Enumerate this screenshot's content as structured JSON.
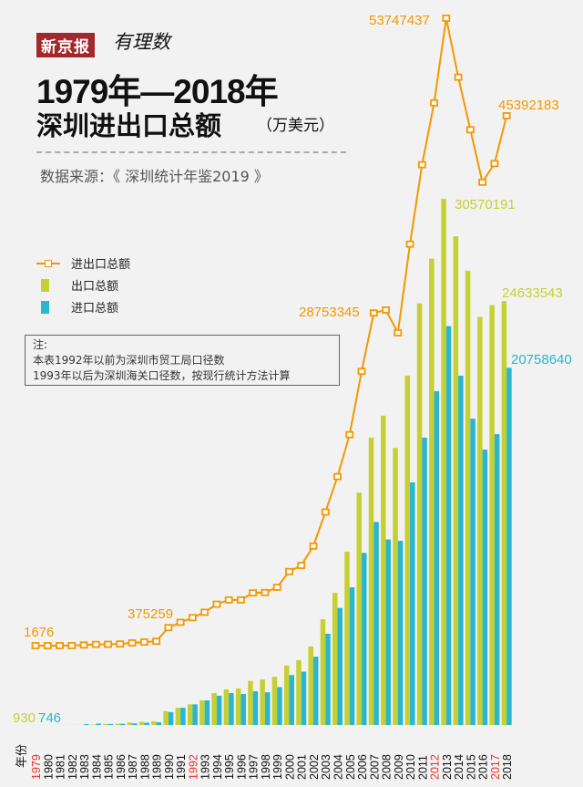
{
  "header": {
    "logo_text": "新京报",
    "logo_script": "有理数",
    "title_line1": "1979年—2018年",
    "title_line2": "深圳进出口总额",
    "unit": "（万美元）",
    "source": "数据来源：《 深圳统计年鉴2019 》"
  },
  "note": {
    "label": "注:",
    "line1": "本表1992年以前为深圳市贸工局口径数",
    "line2": "1993年以后为深圳海关口径数，按现行统计方法计算"
  },
  "colors": {
    "total": "#f39800",
    "export": "#c5d032",
    "import": "#2bb5cf",
    "highlight_year": "#e8302a",
    "year": "#111111"
  },
  "chart_data": {
    "type": "bar+line",
    "title": "1979年—2018年深圳进出口总额（万美元）",
    "xlabel": "年份",
    "unit": "万美元",
    "legend": [
      "进出口总额",
      "出口总额",
      "进口总额"
    ],
    "legend_position": "top-left",
    "highlight_years": [
      "1979",
      "1992",
      "2012",
      "2017"
    ],
    "categories": [
      "1979",
      "1980",
      "1981",
      "1982",
      "1983",
      "1984",
      "1985",
      "1986",
      "1987",
      "1988",
      "1989",
      "1990",
      "1991",
      "1992",
      "1993",
      "1994",
      "1995",
      "1996",
      "1997",
      "1998",
      "1999",
      "2000",
      "2001",
      "2002",
      "2003",
      "2004",
      "2005",
      "2006",
      "2007",
      "2008",
      "2009",
      "2010",
      "2011",
      "2012",
      "2013",
      "2014",
      "2015",
      "2016",
      "2017",
      "2018"
    ],
    "series": [
      {
        "name": "出口总额",
        "values": [
          930,
          1124,
          1676,
          1954,
          7135,
          26504,
          56300,
          72500,
          141400,
          184500,
          217700,
          800000,
          1000000,
          1200000,
          1430000,
          1850000,
          2070000,
          2120000,
          2560000,
          2650000,
          2800000,
          3450000,
          3770000,
          4560000,
          6150000,
          7680000,
          10070000,
          13500000,
          16700000,
          17970000,
          16100000,
          20300000,
          24500000,
          27100000,
          30570191,
          28400000,
          26400000,
          23700000,
          24400000,
          24633543
        ]
      },
      {
        "name": "进口总额",
        "values": [
          746,
          1500,
          2000,
          3000,
          50000,
          80000,
          60000,
          70000,
          95000,
          130000,
          157559,
          750000,
          1000000,
          1200000,
          1430000,
          1700000,
          1850000,
          1800000,
          1960000,
          1900000,
          2200000,
          2900000,
          3100000,
          3970000,
          5300000,
          6800000,
          8000000,
          10000000,
          11800000,
          10783345,
          10700000,
          14100000,
          16700000,
          19400000,
          23177246,
          20300000,
          17800000,
          16000000,
          16900000,
          20758640
        ]
      }
    ],
    "total_label": "进出口总额",
    "data_labels": {
      "export_1979": "930",
      "import_1979": "746",
      "total_1979": "1676",
      "total_1989": "375259",
      "total_2008": "28753345",
      "total_2013": "53747437",
      "total_2018": "45392183",
      "export_2013": "30570191",
      "export_2018": "24633543",
      "import_2018": "20758640"
    }
  }
}
